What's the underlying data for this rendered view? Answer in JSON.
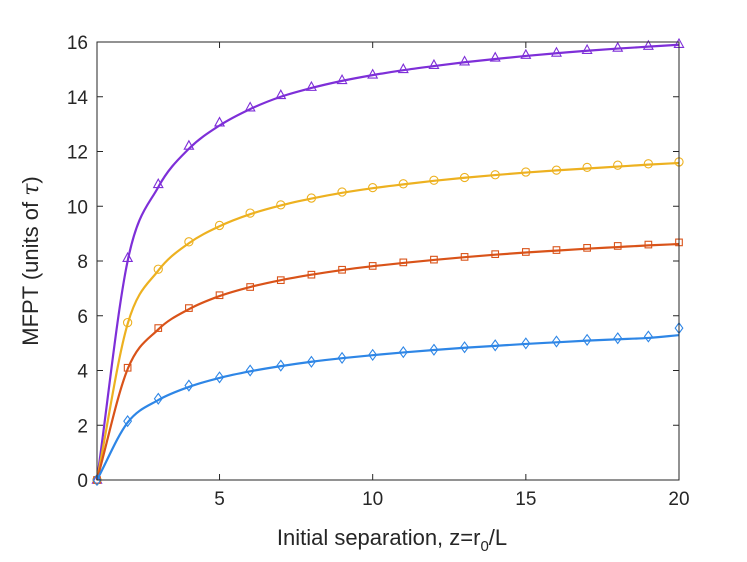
{
  "chart_data": {
    "type": "line",
    "title": "",
    "xlabel": {
      "main": "Initial separation, z=r",
      "subscript": "0",
      "suffix": "/L"
    },
    "ylabel": {
      "main": "MFPT (units of ",
      "symbol": "τ",
      "suffix": ")"
    },
    "xlim": [
      1,
      20
    ],
    "ylim": [
      0,
      16
    ],
    "xticks": [
      5,
      10,
      15,
      20
    ],
    "yticks": [
      0,
      2,
      4,
      6,
      8,
      10,
      12,
      14,
      16
    ],
    "grid": false,
    "legend": "none",
    "x": [
      1,
      2,
      3,
      4,
      5,
      6,
      7,
      8,
      9,
      10,
      11,
      12,
      13,
      14,
      15,
      16,
      17,
      18,
      19,
      20
    ],
    "series": [
      {
        "marker": "triangle",
        "color": "#7e2fd8",
        "markers": [
          0,
          8.1,
          10.8,
          12.2,
          13.05,
          13.6,
          14.05,
          14.35,
          14.6,
          14.8,
          15.0,
          15.15,
          15.28,
          15.42,
          15.52,
          15.6,
          15.7,
          15.78,
          15.85,
          15.92
        ],
        "curve": [
          0,
          8.0,
          10.7,
          12.1,
          12.95,
          13.55,
          14.0,
          14.32,
          14.58,
          14.79,
          14.97,
          15.12,
          15.26,
          15.38,
          15.49,
          15.59,
          15.68,
          15.76,
          15.83,
          15.9
        ]
      },
      {
        "marker": "circle",
        "color": "#edb120",
        "markers": [
          0,
          5.75,
          7.7,
          8.7,
          9.3,
          9.75,
          10.05,
          10.3,
          10.52,
          10.68,
          10.82,
          10.95,
          11.05,
          11.15,
          11.25,
          11.32,
          11.42,
          11.5,
          11.55,
          11.62
        ],
        "curve": [
          0,
          5.7,
          7.65,
          8.65,
          9.27,
          9.71,
          10.03,
          10.28,
          10.49,
          10.66,
          10.8,
          10.93,
          11.04,
          11.14,
          11.23,
          11.31,
          11.38,
          11.45,
          11.52,
          11.58
        ]
      },
      {
        "marker": "square",
        "color": "#d95319",
        "markers": [
          0,
          4.1,
          5.55,
          6.28,
          6.75,
          7.05,
          7.3,
          7.5,
          7.68,
          7.82,
          7.95,
          8.05,
          8.15,
          8.25,
          8.33,
          8.4,
          8.48,
          8.55,
          8.6,
          8.68
        ],
        "curve": [
          0,
          4.05,
          5.5,
          6.24,
          6.72,
          7.05,
          7.3,
          7.5,
          7.67,
          7.81,
          7.93,
          8.04,
          8.14,
          8.23,
          8.31,
          8.38,
          8.45,
          8.51,
          8.57,
          8.62
        ]
      },
      {
        "marker": "diamond",
        "color": "#2e86e6",
        "markers": [
          0,
          2.15,
          2.97,
          3.45,
          3.75,
          4.0,
          4.18,
          4.32,
          4.46,
          4.57,
          4.67,
          4.76,
          4.85,
          4.92,
          4.99,
          5.06,
          5.12,
          5.18,
          5.24,
          5.55
        ],
        "curve": [
          0,
          2.1,
          2.92,
          3.4,
          3.73,
          3.97,
          4.16,
          4.32,
          4.45,
          4.56,
          4.66,
          4.75,
          4.83,
          4.9,
          4.97,
          5.03,
          5.09,
          5.14,
          5.19,
          5.29
        ]
      }
    ]
  }
}
